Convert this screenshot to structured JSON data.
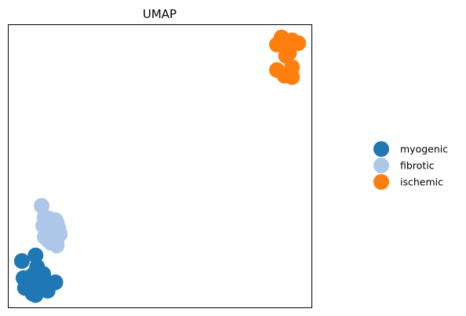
{
  "chart_data": {
    "type": "scatter",
    "title": "UMAP",
    "xlabel": "",
    "ylabel": "",
    "xlim": [
      0,
      1
    ],
    "ylim": [
      0,
      1
    ],
    "grid": false,
    "axis_ticks": false,
    "legend_placement": "right",
    "series": [
      {
        "name": "myogenic",
        "color": "#1f77b4",
        "points": [
          [
            0.045,
            0.165
          ],
          [
            0.09,
            0.185
          ],
          [
            0.095,
            0.145
          ],
          [
            0.05,
            0.105
          ],
          [
            0.08,
            0.115
          ],
          [
            0.115,
            0.12
          ],
          [
            0.135,
            0.085
          ],
          [
            0.105,
            0.09
          ],
          [
            0.075,
            0.095
          ],
          [
            0.055,
            0.07
          ],
          [
            0.08,
            0.05
          ],
          [
            0.095,
            0.06
          ],
          [
            0.13,
            0.06
          ],
          [
            0.155,
            0.09
          ],
          [
            0.09,
            0.045
          ],
          [
            0.085,
            0.07
          ]
        ]
      },
      {
        "name": "fibrotic",
        "color": "#aec7e8",
        "points": [
          [
            0.11,
            0.36
          ],
          [
            0.12,
            0.32
          ],
          [
            0.135,
            0.315
          ],
          [
            0.145,
            0.31
          ],
          [
            0.115,
            0.29
          ],
          [
            0.125,
            0.285
          ],
          [
            0.13,
            0.275
          ],
          [
            0.135,
            0.27
          ],
          [
            0.14,
            0.275
          ],
          [
            0.13,
            0.265
          ],
          [
            0.155,
            0.27
          ],
          [
            0.135,
            0.26
          ],
          [
            0.14,
            0.255
          ],
          [
            0.15,
            0.265
          ],
          [
            0.155,
            0.255
          ],
          [
            0.145,
            0.25
          ],
          [
            0.16,
            0.26
          ],
          [
            0.17,
            0.26
          ],
          [
            0.14,
            0.245
          ],
          [
            0.155,
            0.245
          ],
          [
            0.145,
            0.235
          ],
          [
            0.155,
            0.23
          ],
          [
            0.16,
            0.22
          ],
          [
            0.125,
            0.3
          ],
          [
            0.155,
            0.31
          ],
          [
            0.15,
            0.3
          ],
          [
            0.13,
            0.3
          ],
          [
            0.14,
            0.3
          ],
          [
            0.155,
            0.285
          ],
          [
            0.165,
            0.28
          ],
          [
            0.16,
            0.3
          ],
          [
            0.135,
            0.24
          ],
          [
            0.14,
            0.23
          ],
          [
            0.16,
            0.24
          ],
          [
            0.12,
            0.25
          ],
          [
            0.125,
            0.26
          ],
          [
            0.13,
            0.24
          ]
        ]
      },
      {
        "name": "ischemic",
        "color": "#ff7f0e",
        "points": [
          [
            0.9,
            0.955
          ],
          [
            0.935,
            0.945
          ],
          [
            0.955,
            0.935
          ],
          [
            0.885,
            0.93
          ],
          [
            0.915,
            0.925
          ],
          [
            0.925,
            0.9
          ],
          [
            0.915,
            0.89
          ],
          [
            0.935,
            0.85
          ],
          [
            0.885,
            0.84
          ],
          [
            0.93,
            0.835
          ],
          [
            0.91,
            0.82
          ],
          [
            0.935,
            0.815
          ]
        ]
      }
    ]
  }
}
